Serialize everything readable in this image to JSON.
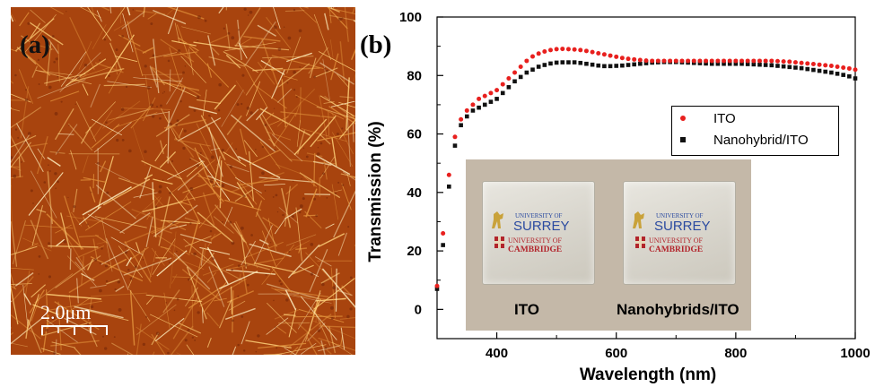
{
  "panel_a": {
    "label": "(a)",
    "scale_bar": "2.0μm"
  },
  "panel_b": {
    "label": "(b)",
    "photo": {
      "captions": [
        "ITO",
        "Nanohybrids/ITO"
      ],
      "logo": {
        "upper_small": "UNIVERSITY OF",
        "upper_big": "SURREY",
        "lower_small": "UNIVERSITY OF",
        "lower_big": "CAMBRIDGE"
      }
    }
  },
  "colors": {
    "ito": "#e8201e",
    "nanohybrid": "#111111",
    "afm_background": "#a8440e",
    "afm_fiber": "#ffd27a"
  },
  "chart_data": {
    "type": "scatter",
    "xlabel": "Wavelength (nm)",
    "ylabel": "Transmission (%)",
    "xlim": [
      300,
      1000
    ],
    "ylim": [
      -10,
      100
    ],
    "xticks": [
      400,
      600,
      800,
      1000
    ],
    "yticks": [
      0,
      20,
      40,
      60,
      80,
      100
    ],
    "legend_position": "right, below the curves",
    "series": [
      {
        "name": "ITO",
        "x": [
          300,
          310,
          320,
          330,
          340,
          350,
          360,
          370,
          380,
          390,
          400,
          410,
          420,
          430,
          440,
          450,
          460,
          470,
          480,
          490,
          500,
          510,
          520,
          530,
          540,
          550,
          560,
          570,
          580,
          590,
          600,
          610,
          620,
          630,
          640,
          650,
          660,
          670,
          680,
          690,
          700,
          710,
          720,
          730,
          740,
          750,
          760,
          770,
          780,
          790,
          800,
          810,
          820,
          830,
          840,
          850,
          860,
          870,
          880,
          890,
          900,
          910,
          920,
          930,
          940,
          950,
          960,
          970,
          980,
          990,
          1000
        ],
        "y": [
          8,
          26,
          46,
          59,
          65,
          68,
          70,
          72,
          73,
          74,
          75,
          77,
          79,
          81,
          83,
          85,
          86.5,
          87.5,
          88.2,
          88.7,
          89,
          89.1,
          89,
          88.9,
          88.7,
          88.4,
          88,
          87.6,
          87.2,
          86.8,
          86.4,
          86,
          85.7,
          85.5,
          85.3,
          85.1,
          85,
          85,
          85,
          85,
          85,
          85,
          85,
          85,
          85,
          85,
          85,
          85,
          85,
          85,
          85,
          85,
          85,
          85,
          85,
          85,
          85,
          84.9,
          84.8,
          84.7,
          84.5,
          84.3,
          84.1,
          83.9,
          83.7,
          83.5,
          83.3,
          83,
          82.7,
          82.4,
          82
        ]
      },
      {
        "name": "Nanohybrid/ITO",
        "x": [
          300,
          310,
          320,
          330,
          340,
          350,
          360,
          370,
          380,
          390,
          400,
          410,
          420,
          430,
          440,
          450,
          460,
          470,
          480,
          490,
          500,
          510,
          520,
          530,
          540,
          550,
          560,
          570,
          580,
          590,
          600,
          610,
          620,
          630,
          640,
          650,
          660,
          670,
          680,
          690,
          700,
          710,
          720,
          730,
          740,
          750,
          760,
          770,
          780,
          790,
          800,
          810,
          820,
          830,
          840,
          850,
          860,
          870,
          880,
          890,
          900,
          910,
          920,
          930,
          940,
          950,
          960,
          970,
          980,
          990,
          1000
        ],
        "y": [
          7,
          22,
          42,
          56,
          63,
          66,
          68,
          69,
          70,
          71,
          72,
          74,
          76,
          78,
          79.5,
          81,
          82,
          83,
          83.6,
          84.1,
          84.4,
          84.5,
          84.5,
          84.5,
          84.3,
          84,
          83.7,
          83.4,
          83.2,
          83.2,
          83.3,
          83.4,
          83.6,
          83.8,
          84,
          84.2,
          84.4,
          84.5,
          84.6,
          84.6,
          84.6,
          84.5,
          84.4,
          84.3,
          84.2,
          84.1,
          84,
          84,
          84,
          84,
          84,
          84,
          83.9,
          83.8,
          83.7,
          83.6,
          83.5,
          83.3,
          83.1,
          82.9,
          82.7,
          82.5,
          82.2,
          81.9,
          81.6,
          81.3,
          81,
          80.6,
          80.2,
          79.7,
          79
        ]
      }
    ]
  }
}
